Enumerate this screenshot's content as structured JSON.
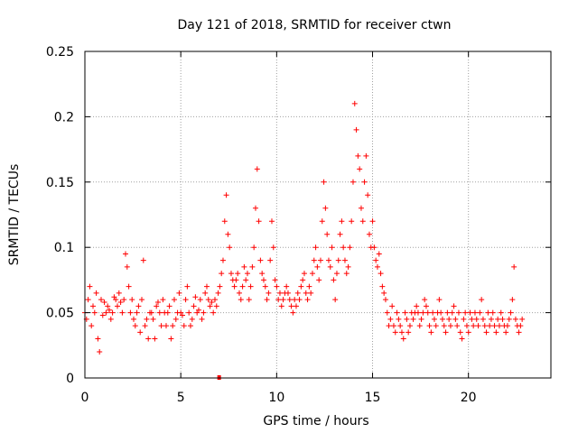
{
  "chart_data": {
    "type": "scatter",
    "title": "Day 121 of 2018, SRMTID for receiver ctwn",
    "xlabel": "GPS time / hours",
    "ylabel": "SRMTID / TECUs",
    "xlim": [
      0,
      24.3
    ],
    "ylim": [
      0,
      0.25
    ],
    "xticks": [
      0,
      5,
      10,
      15,
      20
    ],
    "yticks": [
      0,
      0.05,
      0.1,
      0.15,
      0.2,
      0.25
    ],
    "x_tick_labels": [
      "0",
      "5",
      "10",
      "15",
      "20"
    ],
    "y_tick_labels": [
      "0",
      "0.05",
      "0.1",
      "0.15",
      "0.2",
      "0.25"
    ],
    "grid": true,
    "marker": "+",
    "color": "#ff0000",
    "x_step": 0.01,
    "series": [
      {
        "name": "SRMTID",
        "x_start": 0.0,
        "x_end": 22.8,
        "values": [
          0.05,
          0.045,
          0.06,
          0.07,
          0.04,
          0.055,
          0.05,
          0.065,
          0.03,
          0.02,
          0.06,
          0.048,
          0.058,
          0.05,
          0.055,
          0.052,
          0.045,
          0.05,
          0.062,
          0.06,
          0.055,
          0.065,
          0.058,
          0.05,
          0.06,
          0.095,
          0.085,
          0.07,
          0.05,
          0.06,
          0.045,
          0.04,
          0.05,
          0.055,
          0.035,
          0.06,
          0.09,
          0.04,
          0.045,
          0.03,
          0.05,
          0.05,
          0.045,
          0.03,
          0.055,
          0.058,
          0.05,
          0.04,
          0.06,
          0.05,
          0.04,
          0.05,
          0.055,
          0.03,
          0.04,
          0.06,
          0.045,
          0.05,
          0.065,
          0.05,
          0.048,
          0.04,
          0.06,
          0.07,
          0.05,
          0.04,
          0.045,
          0.055,
          0.062,
          0.05,
          0.052,
          0.06,
          0.045,
          0.05,
          0.065,
          0.07,
          0.06,
          0.055,
          0.058,
          0.05,
          0.06,
          0.055,
          0.065,
          0.07,
          0.08,
          0.09,
          0.12,
          0.14,
          0.11,
          0.1,
          0.08,
          0.075,
          0.07,
          0.075,
          0.08,
          0.065,
          0.06,
          0.07,
          0.085,
          0.075,
          0.08,
          0.06,
          0.07,
          0.085,
          0.1,
          0.13,
          0.16,
          0.12,
          0.09,
          0.08,
          0.075,
          0.07,
          0.06,
          0.065,
          0.09,
          0.12,
          0.1,
          0.075,
          0.07,
          0.06,
          0.065,
          0.055,
          0.06,
          0.065,
          0.07,
          0.065,
          0.06,
          0.055,
          0.05,
          0.06,
          0.055,
          0.065,
          0.06,
          0.07,
          0.075,
          0.08,
          0.065,
          0.06,
          0.07,
          0.065,
          0.08,
          0.09,
          0.1,
          0.085,
          0.075,
          0.09,
          0.12,
          0.15,
          0.13,
          0.11,
          0.09,
          0.085,
          0.1,
          0.075,
          0.06,
          0.08,
          0.09,
          0.11,
          0.12,
          0.1,
          0.09,
          0.08,
          0.085,
          0.1,
          0.12,
          0.15,
          0.21,
          0.19,
          0.17,
          0.16,
          0.13,
          0.12,
          0.15,
          0.17,
          0.14,
          0.11,
          0.1,
          0.12,
          0.1,
          0.09,
          0.085,
          0.095,
          0.08,
          0.07,
          0.065,
          0.06,
          0.05,
          0.04,
          0.045,
          0.055,
          0.04,
          0.035,
          0.05,
          0.045,
          0.04,
          0.035,
          0.03,
          0.05,
          0.045,
          0.035,
          0.04,
          0.05,
          0.045,
          0.05,
          0.055,
          0.05,
          0.04,
          0.045,
          0.05,
          0.06,
          0.055,
          0.05,
          0.04,
          0.035,
          0.05,
          0.045,
          0.04,
          0.05,
          0.06,
          0.05,
          0.045,
          0.04,
          0.035,
          0.05,
          0.045,
          0.04,
          0.05,
          0.055,
          0.045,
          0.04,
          0.05,
          0.035,
          0.03,
          0.045,
          0.05,
          0.04,
          0.035,
          0.05,
          0.045,
          0.04,
          0.05,
          0.045,
          0.04,
          0.05,
          0.06,
          0.045,
          0.04,
          0.035,
          0.05,
          0.04,
          0.045,
          0.05,
          0.04,
          0.035,
          0.045,
          0.04,
          0.05,
          0.045,
          0.04,
          0.035,
          0.04,
          0.045,
          0.05,
          0.06,
          0.085,
          0.045,
          0.04,
          0.035,
          0.04,
          0.045
        ]
      }
    ],
    "highlight_point": {
      "x": 7.0,
      "y": 0.0
    }
  }
}
